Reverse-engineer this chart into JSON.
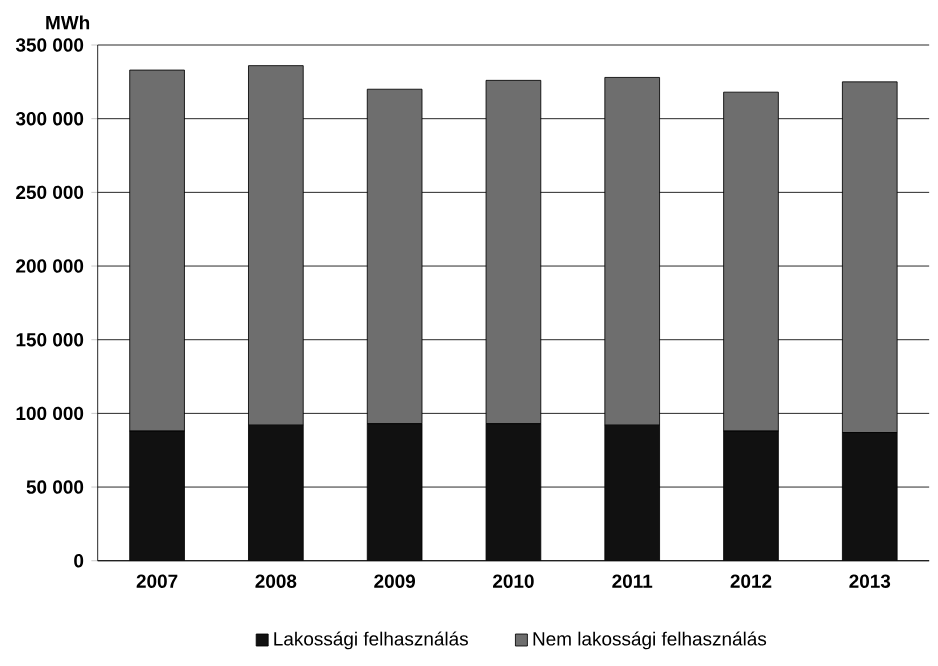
{
  "chart_data": {
    "type": "bar",
    "stacked": true,
    "ylabel": "MWh",
    "categories": [
      "2007",
      "2008",
      "2009",
      "2010",
      "2011",
      "2012",
      "2013"
    ],
    "series": [
      {
        "name": "Lakossági felhasználás",
        "color": "#111111",
        "values": [
          88000,
          92000,
          93000,
          93000,
          92000,
          88000,
          87000
        ]
      },
      {
        "name": "Nem lakossági felhasználás",
        "color": "#6e6e6e",
        "values": [
          245000,
          244000,
          227000,
          233000,
          236000,
          230000,
          238000
        ]
      }
    ],
    "ylim": [
      0,
      350000
    ],
    "yticks": [
      {
        "value": 0,
        "label": "0"
      },
      {
        "value": 50000,
        "label": "50 000"
      },
      {
        "value": 100000,
        "label": "100 000"
      },
      {
        "value": 150000,
        "label": "150 000"
      },
      {
        "value": 200000,
        "label": "200 000"
      },
      {
        "value": 250000,
        "label": "250 000"
      },
      {
        "value": 300000,
        "label": "300 000"
      },
      {
        "value": 350000,
        "label": "350 000"
      }
    ],
    "grid": "y",
    "legend": "bottom"
  }
}
